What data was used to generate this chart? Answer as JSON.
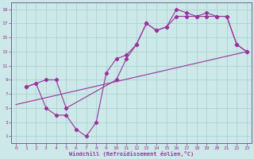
{
  "xlabel": "Windchill (Refroidissement éolien,°C)",
  "bg_color": "#cce8e8",
  "grid_color": "#aad4d4",
  "line_color": "#993399",
  "spine_color": "#666699",
  "xlim": [
    -0.5,
    23.5
  ],
  "ylim": [
    0,
    20
  ],
  "xticks": [
    0,
    1,
    2,
    3,
    4,
    5,
    6,
    7,
    8,
    9,
    10,
    11,
    12,
    13,
    14,
    15,
    16,
    17,
    18,
    19,
    20,
    21,
    22,
    23
  ],
  "yticks": [
    1,
    3,
    5,
    7,
    9,
    11,
    13,
    15,
    17,
    19
  ],
  "line1_x": [
    1,
    2,
    3,
    4,
    5,
    6,
    7,
    8,
    9,
    10,
    11,
    12,
    13,
    14,
    15,
    16,
    17,
    18,
    19,
    20,
    21,
    22,
    23
  ],
  "line1_y": [
    8,
    8.5,
    5,
    4,
    4,
    2,
    1,
    3,
    10,
    12,
    12.5,
    14,
    17,
    16,
    16.5,
    19,
    18.5,
    18,
    18.5,
    18,
    18,
    14,
    13
  ],
  "line2_x": [
    1,
    3,
    4,
    5,
    10,
    11,
    12,
    13,
    14,
    15,
    16,
    17,
    18,
    19,
    20,
    21,
    22,
    23
  ],
  "line2_y": [
    8,
    9,
    9,
    5,
    9,
    12,
    14,
    17,
    16,
    16.5,
    18,
    18,
    18,
    18,
    18,
    18,
    14,
    13
  ],
  "line3_x": [
    0,
    23
  ],
  "line3_y": [
    5.5,
    13
  ]
}
